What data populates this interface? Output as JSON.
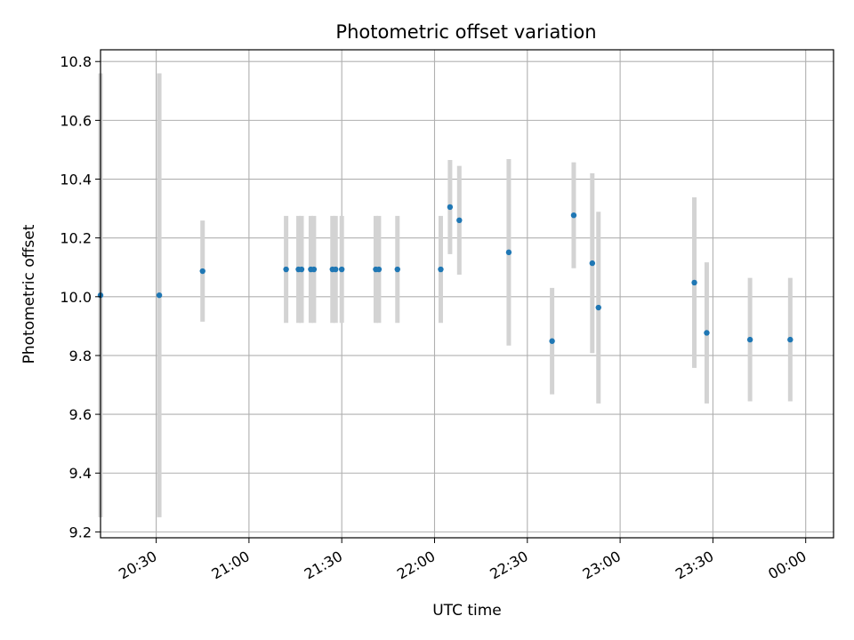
{
  "chart_data": {
    "type": "scatter",
    "title": "Photometric offset variation",
    "xlabel": "UTC time",
    "ylabel": "Photometric offset",
    "x_range": [
      "20:12",
      "00:09"
    ],
    "ylim": [
      9.18,
      10.84
    ],
    "grid": true,
    "x_ticks": [
      "20:30",
      "21:00",
      "21:30",
      "22:00",
      "22:30",
      "23:00",
      "23:30",
      "00:00"
    ],
    "y_ticks": [
      9.2,
      9.4,
      9.6,
      9.8,
      10.0,
      10.2,
      10.4,
      10.6,
      10.8
    ],
    "point_color": "#1f77b4",
    "errorbar_color": "#d3d3d3",
    "points": [
      {
        "t": "20:12",
        "y": 10.005,
        "err": 0.755
      },
      {
        "t": "20:31",
        "y": 10.005,
        "err": 0.755
      },
      {
        "t": "20:45",
        "y": 10.087,
        "err": 0.172
      },
      {
        "t": "21:12",
        "y": 10.093,
        "err": 0.182
      },
      {
        "t": "21:16",
        "y": 10.093,
        "err": 0.182
      },
      {
        "t": "21:17",
        "y": 10.093,
        "err": 0.182
      },
      {
        "t": "21:20",
        "y": 10.093,
        "err": 0.182
      },
      {
        "t": "21:21",
        "y": 10.093,
        "err": 0.182
      },
      {
        "t": "21:27",
        "y": 10.093,
        "err": 0.182
      },
      {
        "t": "21:28",
        "y": 10.093,
        "err": 0.182
      },
      {
        "t": "21:30",
        "y": 10.093,
        "err": 0.182
      },
      {
        "t": "21:41",
        "y": 10.093,
        "err": 0.182
      },
      {
        "t": "21:42",
        "y": 10.093,
        "err": 0.182
      },
      {
        "t": "21:48",
        "y": 10.093,
        "err": 0.182
      },
      {
        "t": "22:02",
        "y": 10.093,
        "err": 0.182
      },
      {
        "t": "22:05",
        "y": 10.305,
        "err": 0.16
      },
      {
        "t": "22:08",
        "y": 10.26,
        "err": 0.185
      },
      {
        "t": "22:24",
        "y": 10.151,
        "err": 0.317
      },
      {
        "t": "22:38",
        "y": 9.849,
        "err": 0.181
      },
      {
        "t": "22:45",
        "y": 10.277,
        "err": 0.18
      },
      {
        "t": "22:51",
        "y": 10.114,
        "err": 0.306
      },
      {
        "t": "22:53",
        "y": 9.963,
        "err": 0.326
      },
      {
        "t": "23:24",
        "y": 10.048,
        "err": 0.29
      },
      {
        "t": "23:28",
        "y": 9.877,
        "err": 0.24
      },
      {
        "t": "23:42",
        "y": 9.854,
        "err": 0.21
      },
      {
        "t": "23:55",
        "y": 9.854,
        "err": 0.21
      }
    ]
  }
}
